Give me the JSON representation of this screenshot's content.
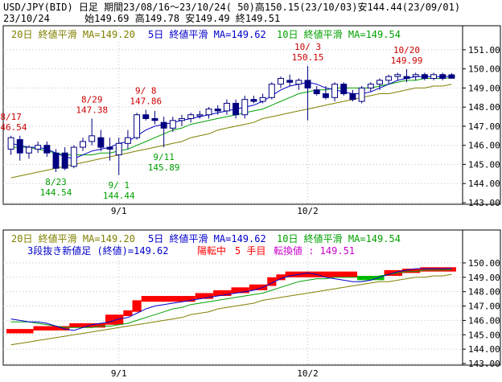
{
  "header": {
    "line1": "USD/JPY(BID) 日足 期間23/08/16～23/10/24( 50)高150.15(23/10/03)安144.44(23/09/01)",
    "line2": "23/10/24      始149.69 高149.78 安149.49 終149.51"
  },
  "colors": {
    "ma20": "#808000",
    "ma5": "#0000cc",
    "ma10": "#00a000",
    "up_candle": "#ffffff",
    "down_candle": "#000080",
    "annot_high": "#cc0000",
    "annot_low": "#00a000",
    "brick_up": "#ff0000",
    "brick_down": "#00c000",
    "info_main": "#0000cc",
    "info_state": "#ff0000",
    "info_reversal": "#cc00cc",
    "grid": "#c0c0c0"
  },
  "top_legend": {
    "ma20": "20日 終値平滑 MA=149.20",
    "ma5": "5日 終値平滑 MA=149.62",
    "ma10": "10日 終値平滑 MA=149.54"
  },
  "bottom_legend": {
    "ma20": "20日 終値平滑 MA=149.20",
    "ma5": "5日 終値平滑 MA=149.62",
    "ma10": "10日 終値平滑 MA=149.54"
  },
  "bottom_info": {
    "part1": "3段抜き新値足 (終値)=149.62",
    "part2": "陽転中",
    "part3": "5 手目",
    "part4": "転換値 : 149.51"
  },
  "chart_data": [
    {
      "type": "candlestick",
      "ylim": [
        143.0,
        151.5
      ],
      "y_ticks": [
        "143.00",
        "144.00",
        "145.00",
        "146.00",
        "147.00",
        "148.00",
        "149.00",
        "150.00",
        "151.00"
      ],
      "x_labels": [
        "9/1",
        "10/2"
      ],
      "x_label_index": [
        12,
        33
      ],
      "candles": [
        {
          "o": 145.8,
          "h": 146.5,
          "l": 145.5,
          "c": 146.4
        },
        {
          "o": 146.3,
          "h": 146.5,
          "l": 145.2,
          "c": 145.6
        },
        {
          "o": 145.6,
          "h": 146.0,
          "l": 145.3,
          "c": 145.9
        },
        {
          "o": 145.8,
          "h": 146.2,
          "l": 145.6,
          "c": 146.0
        },
        {
          "o": 146.0,
          "h": 146.2,
          "l": 145.4,
          "c": 145.6
        },
        {
          "o": 145.6,
          "h": 145.8,
          "l": 144.6,
          "c": 144.8
        },
        {
          "o": 145.6,
          "h": 145.9,
          "l": 144.7,
          "c": 144.8
        },
        {
          "o": 144.9,
          "h": 146.0,
          "l": 144.8,
          "c": 145.9
        },
        {
          "o": 145.9,
          "h": 146.4,
          "l": 145.7,
          "c": 146.2
        },
        {
          "o": 146.2,
          "h": 147.4,
          "l": 146.0,
          "c": 146.5
        },
        {
          "o": 146.4,
          "h": 146.8,
          "l": 145.7,
          "c": 145.9
        },
        {
          "o": 145.9,
          "h": 146.4,
          "l": 145.2,
          "c": 145.8
        },
        {
          "o": 145.5,
          "h": 146.4,
          "l": 144.44,
          "c": 146.1
        },
        {
          "o": 146.1,
          "h": 146.8,
          "l": 145.8,
          "c": 146.4
        },
        {
          "o": 146.4,
          "h": 147.7,
          "l": 146.3,
          "c": 147.6
        },
        {
          "o": 147.6,
          "h": 147.86,
          "l": 147.3,
          "c": 147.4
        },
        {
          "o": 147.4,
          "h": 147.8,
          "l": 147.1,
          "c": 147.3
        },
        {
          "o": 147.2,
          "h": 147.5,
          "l": 145.9,
          "c": 146.9
        },
        {
          "o": 146.9,
          "h": 147.5,
          "l": 146.7,
          "c": 147.3
        },
        {
          "o": 147.3,
          "h": 147.6,
          "l": 147.0,
          "c": 147.4
        },
        {
          "o": 147.4,
          "h": 147.7,
          "l": 147.2,
          "c": 147.6
        },
        {
          "o": 147.6,
          "h": 147.8,
          "l": 147.4,
          "c": 147.6
        },
        {
          "o": 147.6,
          "h": 148.0,
          "l": 147.4,
          "c": 147.9
        },
        {
          "o": 147.9,
          "h": 148.1,
          "l": 147.6,
          "c": 147.8
        },
        {
          "o": 147.8,
          "h": 148.4,
          "l": 147.6,
          "c": 148.2
        },
        {
          "o": 148.2,
          "h": 148.4,
          "l": 147.4,
          "c": 147.6
        },
        {
          "o": 147.6,
          "h": 148.6,
          "l": 147.4,
          "c": 148.4
        },
        {
          "o": 148.4,
          "h": 148.6,
          "l": 148.2,
          "c": 148.3
        },
        {
          "o": 148.3,
          "h": 148.7,
          "l": 148.2,
          "c": 148.5
        },
        {
          "o": 148.5,
          "h": 149.3,
          "l": 148.4,
          "c": 149.2
        },
        {
          "o": 149.2,
          "h": 149.6,
          "l": 149.0,
          "c": 149.5
        },
        {
          "o": 149.4,
          "h": 149.7,
          "l": 149.1,
          "c": 149.3
        },
        {
          "o": 149.2,
          "h": 149.5,
          "l": 148.9,
          "c": 149.4
        },
        {
          "o": 149.4,
          "h": 150.15,
          "l": 147.3,
          "c": 149.0
        },
        {
          "o": 148.9,
          "h": 149.1,
          "l": 148.6,
          "c": 148.7
        },
        {
          "o": 148.7,
          "h": 149.1,
          "l": 148.4,
          "c": 148.5
        },
        {
          "o": 148.5,
          "h": 149.3,
          "l": 148.3,
          "c": 149.2
        },
        {
          "o": 149.2,
          "h": 149.3,
          "l": 148.6,
          "c": 148.7
        },
        {
          "o": 148.7,
          "h": 148.9,
          "l": 148.3,
          "c": 148.4
        },
        {
          "o": 148.3,
          "h": 149.1,
          "l": 148.2,
          "c": 149.0
        },
        {
          "o": 149.0,
          "h": 149.3,
          "l": 148.8,
          "c": 149.2
        },
        {
          "o": 149.2,
          "h": 149.5,
          "l": 148.9,
          "c": 149.4
        },
        {
          "o": 149.4,
          "h": 149.7,
          "l": 149.2,
          "c": 149.6
        },
        {
          "o": 149.6,
          "h": 149.8,
          "l": 149.4,
          "c": 149.7
        },
        {
          "o": 149.6,
          "h": 149.99,
          "l": 149.3,
          "c": 149.5
        },
        {
          "o": 149.6,
          "h": 149.8,
          "l": 149.4,
          "c": 149.7
        },
        {
          "o": 149.7,
          "h": 149.8,
          "l": 149.4,
          "c": 149.5
        },
        {
          "o": 149.5,
          "h": 149.8,
          "l": 149.4,
          "c": 149.7
        },
        {
          "o": 149.7,
          "h": 149.8,
          "l": 149.4,
          "c": 149.5
        },
        {
          "o": 149.69,
          "h": 149.78,
          "l": 149.49,
          "c": 149.51
        }
      ],
      "ma5": [
        146.1,
        146.0,
        145.9,
        145.9,
        145.8,
        145.6,
        145.4,
        145.3,
        145.5,
        145.7,
        145.8,
        145.9,
        146.1,
        146.2,
        146.5,
        146.8,
        147.0,
        147.1,
        147.2,
        147.3,
        147.4,
        147.5,
        147.6,
        147.7,
        147.8,
        147.9,
        148.0,
        148.1,
        148.3,
        148.6,
        148.9,
        149.1,
        149.2,
        149.3,
        149.2,
        149.0,
        148.9,
        148.8,
        148.7,
        148.7,
        148.8,
        149.0,
        149.2,
        149.4,
        149.5,
        149.6,
        149.6,
        149.6,
        149.6,
        149.62
      ],
      "ma10": [
        145.9,
        145.9,
        145.9,
        145.8,
        145.7,
        145.6,
        145.5,
        145.5,
        145.5,
        145.5,
        145.6,
        145.6,
        145.7,
        145.8,
        146.0,
        146.2,
        146.4,
        146.6,
        146.8,
        146.9,
        147.1,
        147.2,
        147.3,
        147.4,
        147.5,
        147.6,
        147.7,
        147.8,
        147.9,
        148.1,
        148.3,
        148.5,
        148.7,
        148.8,
        148.9,
        148.9,
        149.0,
        149.0,
        149.0,
        149.0,
        149.0,
        149.1,
        149.2,
        149.3,
        149.4,
        149.4,
        149.5,
        149.5,
        149.5,
        149.54
      ],
      "ma20": [
        144.3,
        144.4,
        144.5,
        144.6,
        144.7,
        144.8,
        144.9,
        145.0,
        145.1,
        145.2,
        145.3,
        145.4,
        145.5,
        145.6,
        145.7,
        145.8,
        145.9,
        146.0,
        146.1,
        146.2,
        146.4,
        146.5,
        146.6,
        146.8,
        146.9,
        147.0,
        147.1,
        147.2,
        147.4,
        147.5,
        147.6,
        147.7,
        147.8,
        147.9,
        148.0,
        148.1,
        148.2,
        148.3,
        148.4,
        148.5,
        148.6,
        148.7,
        148.7,
        148.8,
        148.9,
        149.0,
        149.0,
        149.1,
        149.1,
        149.2
      ],
      "annotations": [
        {
          "i": 0,
          "date": "8/17",
          "price": "146.54",
          "kind": "high"
        },
        {
          "i": 5,
          "date": "8/23",
          "price": "144.54",
          "kind": "low"
        },
        {
          "i": 9,
          "date": "8/29",
          "price": "147.38",
          "kind": "high"
        },
        {
          "i": 12,
          "date": "9/ 1",
          "price": "144.44",
          "kind": "low"
        },
        {
          "i": 15,
          "date": "9/ 8",
          "price": "147.86",
          "kind": "high"
        },
        {
          "i": 17,
          "date": "9/11",
          "price": "145.89",
          "kind": "low"
        },
        {
          "i": 33,
          "date": "10/ 3",
          "price": "150.15",
          "kind": "high"
        },
        {
          "i": 44,
          "date": "10/20",
          "price": "149.99",
          "kind": "high"
        }
      ]
    },
    {
      "type": "new_price_bars",
      "ylim": [
        143.0,
        150.5
      ],
      "y_ticks": [
        "143.00",
        "144.00",
        "145.00",
        "146.00",
        "147.00",
        "148.00",
        "149.00",
        "150.00"
      ],
      "x_labels": [
        "9/1",
        "10/2"
      ],
      "x_label_index": [
        12,
        33
      ],
      "bricks": [
        {
          "i0": 0,
          "i1": 3,
          "lo": 145.1,
          "hi": 145.4,
          "dir": "up"
        },
        {
          "i0": 3,
          "i1": 7,
          "lo": 145.3,
          "hi": 145.6,
          "dir": "up"
        },
        {
          "i0": 7,
          "i1": 11,
          "lo": 145.5,
          "hi": 145.8,
          "dir": "up"
        },
        {
          "i0": 11,
          "i1": 13,
          "lo": 145.7,
          "hi": 146.4,
          "dir": "up"
        },
        {
          "i0": 13,
          "i1": 14,
          "lo": 146.3,
          "hi": 146.7,
          "dir": "up"
        },
        {
          "i0": 14,
          "i1": 15,
          "lo": 146.6,
          "hi": 147.4,
          "dir": "up"
        },
        {
          "i0": 15,
          "i1": 21,
          "lo": 147.3,
          "hi": 147.7,
          "dir": "up"
        },
        {
          "i0": 21,
          "i1": 23,
          "lo": 147.5,
          "hi": 147.9,
          "dir": "up"
        },
        {
          "i0": 23,
          "i1": 25,
          "lo": 147.7,
          "hi": 148.1,
          "dir": "up"
        },
        {
          "i0": 25,
          "i1": 27,
          "lo": 147.9,
          "hi": 148.3,
          "dir": "up"
        },
        {
          "i0": 27,
          "i1": 29,
          "lo": 148.1,
          "hi": 148.5,
          "dir": "up"
        },
        {
          "i0": 29,
          "i1": 30,
          "lo": 148.4,
          "hi": 149.0,
          "dir": "up"
        },
        {
          "i0": 30,
          "i1": 31,
          "lo": 148.8,
          "hi": 149.2,
          "dir": "up"
        },
        {
          "i0": 31,
          "i1": 39,
          "lo": 149.0,
          "hi": 149.4,
          "dir": "up"
        },
        {
          "i0": 39,
          "i1": 42,
          "lo": 148.8,
          "hi": 149.1,
          "dir": "down"
        },
        {
          "i0": 42,
          "i1": 44,
          "lo": 149.1,
          "hi": 149.5,
          "dir": "up"
        },
        {
          "i0": 44,
          "i1": 46,
          "lo": 149.3,
          "hi": 149.6,
          "dir": "up"
        },
        {
          "i0": 46,
          "i1": 50,
          "lo": 149.4,
          "hi": 149.7,
          "dir": "up"
        }
      ]
    }
  ]
}
